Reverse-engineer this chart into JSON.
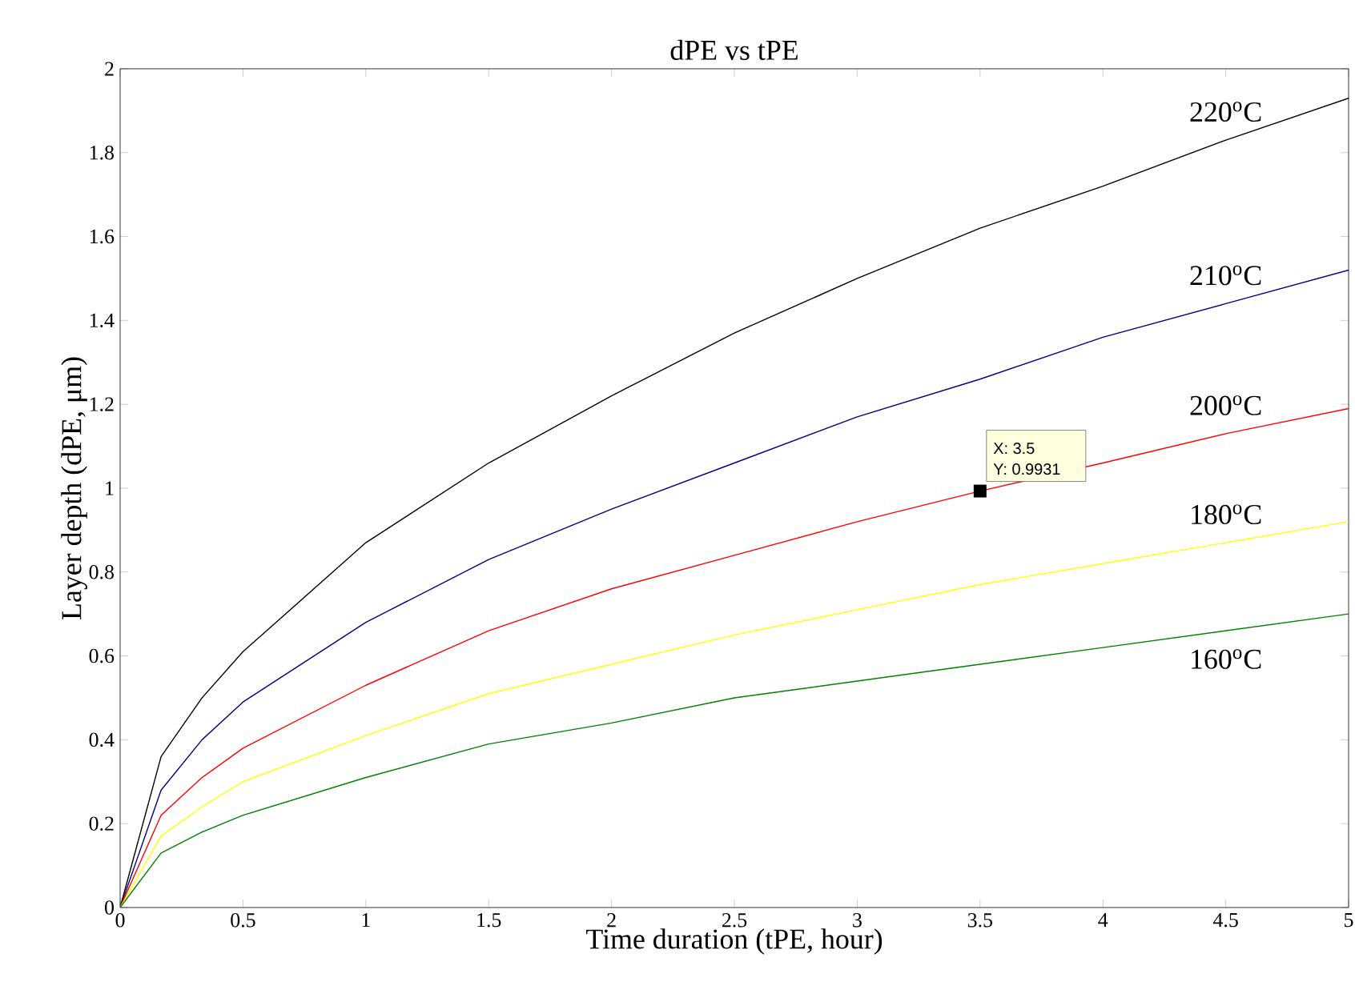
{
  "chart_data": {
    "type": "line",
    "title": "dPE vs tPE",
    "xlabel": "Time duration (tPE, hour)",
    "ylabel": "Layer depth (dPE, μm)",
    "x": [
      0,
      0.1667,
      0.3333,
      0.5,
      1,
      1.5,
      2,
      2.5,
      3,
      3.5,
      4,
      4.5,
      5
    ],
    "series": [
      {
        "name": "220$^{o}$C",
        "color": "#000000",
        "values": [
          0,
          0.36,
          0.5,
          0.61,
          0.87,
          1.06,
          1.22,
          1.37,
          1.5,
          1.62,
          1.72,
          1.83,
          1.93
        ]
      },
      {
        "name": "210$^{o}$C",
        "color": "#000080",
        "values": [
          0,
          0.28,
          0.4,
          0.49,
          0.68,
          0.83,
          0.95,
          1.06,
          1.17,
          1.26,
          1.36,
          1.44,
          1.52
        ]
      },
      {
        "name": "200$^{o}$C",
        "color": "#ff0000",
        "values": [
          0,
          0.22,
          0.31,
          0.38,
          0.53,
          0.66,
          0.76,
          0.84,
          0.92,
          0.9931,
          1.06,
          1.13,
          1.19
        ]
      },
      {
        "name": "180$^{o}$C",
        "color": "#ffff00",
        "values": [
          0,
          0.17,
          0.24,
          0.3,
          0.41,
          0.51,
          0.58,
          0.65,
          0.71,
          0.77,
          0.82,
          0.87,
          0.92
        ]
      },
      {
        "name": "160$^{o}$C",
        "color": "#008000",
        "values": [
          0,
          0.13,
          0.18,
          0.22,
          0.31,
          0.39,
          0.44,
          0.5,
          0.54,
          0.58,
          0.62,
          0.66,
          0.7
        ]
      }
    ],
    "annotations": [
      {
        "text": "X: 3.5",
        "x": 3.5,
        "y": 0.9931
      },
      {
        "text": "Y: 0.9931",
        "x": 3.5,
        "y": 0.9931
      }
    ],
    "xlim": [
      0,
      5
    ],
    "ylim": [
      0,
      2
    ],
    "xticks": [
      0,
      0.5,
      1,
      1.5,
      2,
      2.5,
      3,
      3.5,
      4,
      4.5,
      5
    ],
    "yticks": [
      0,
      0.2,
      0.4,
      0.6,
      0.8,
      1,
      1.2,
      1.4,
      1.6,
      1.8,
      2
    ],
    "grid": false,
    "legend": false,
    "marker": "none",
    "line_style": "solid"
  }
}
